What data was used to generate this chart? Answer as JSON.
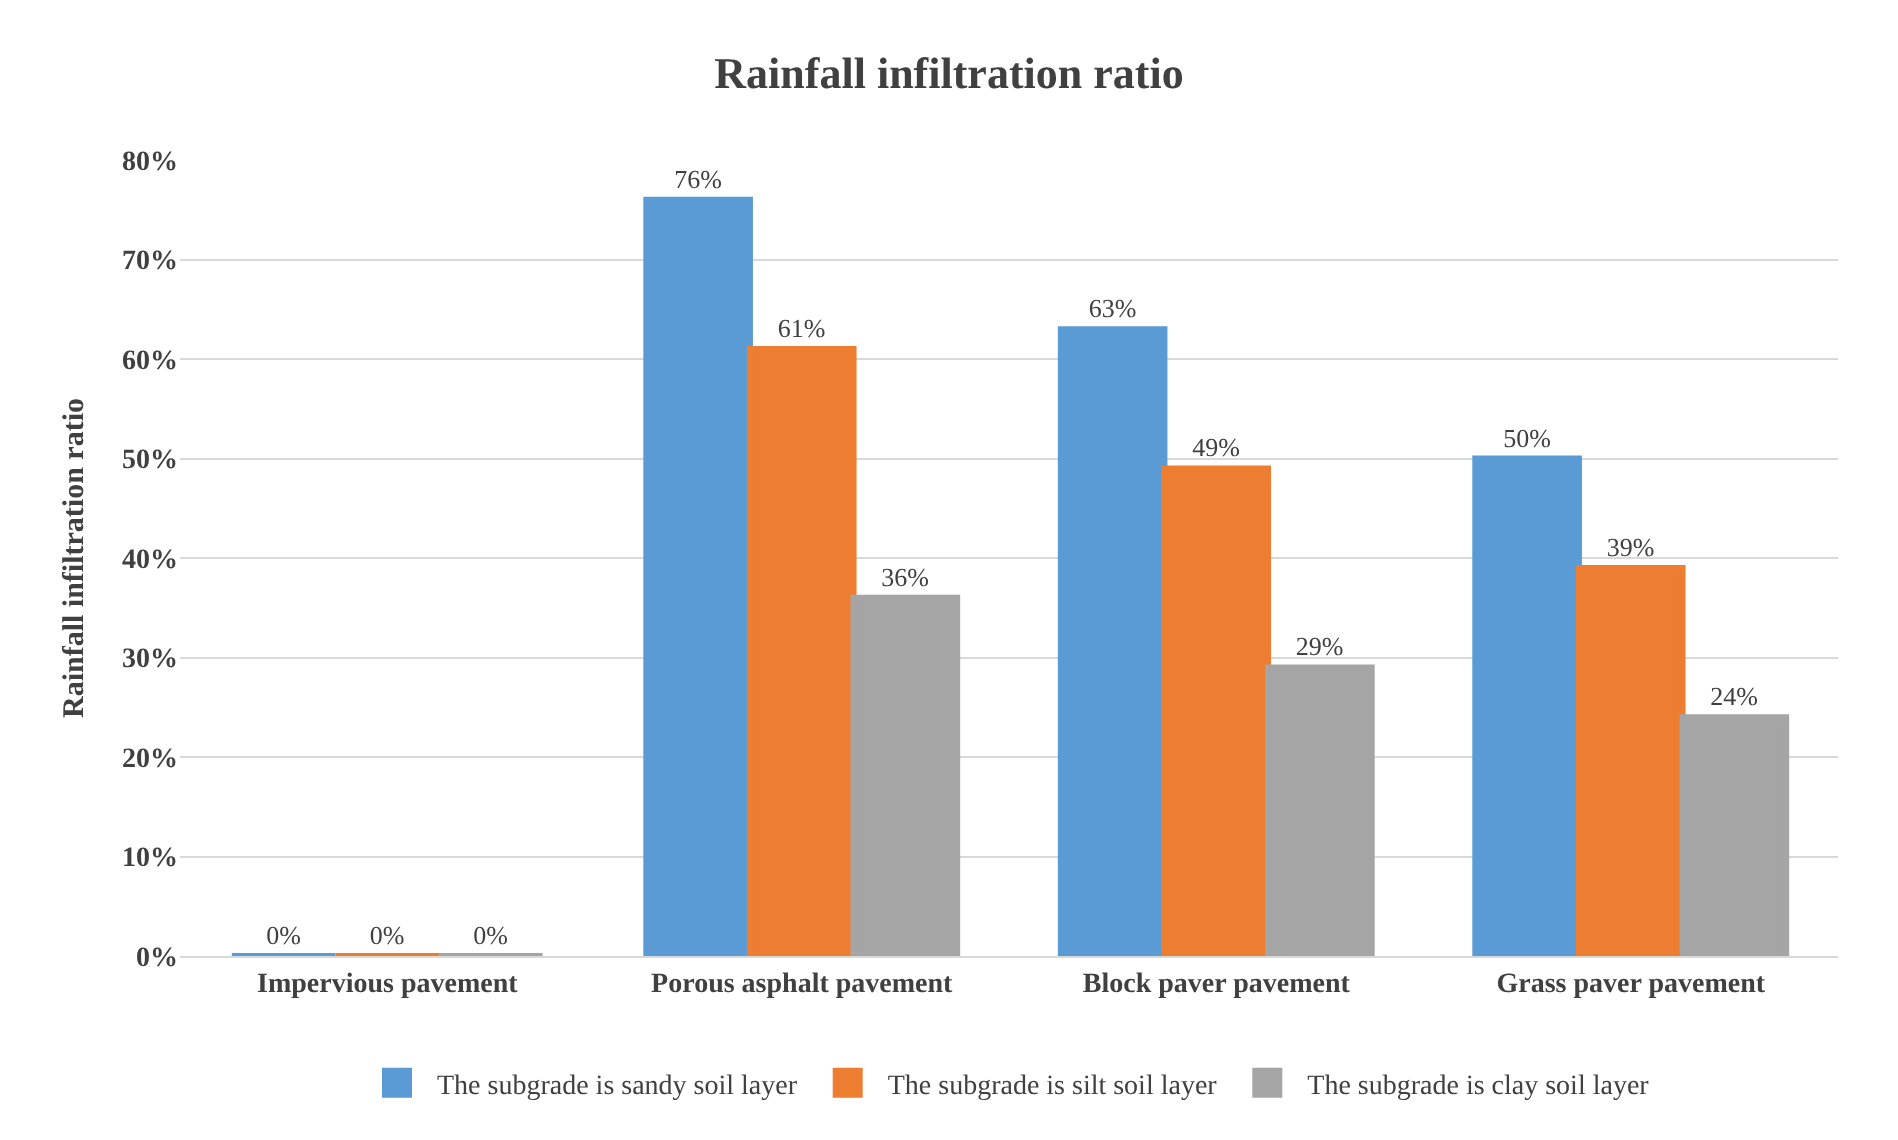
{
  "chart_data": {
    "type": "bar",
    "title": "Rainfall infiltration ratio",
    "ylabel": "Rainfall infiltration ratio",
    "categories": [
      "Impervious pavement",
      "Porous asphalt pavement",
      "Block paver pavement",
      "Grass paver pavement"
    ],
    "series": [
      {
        "name": "The subgrade is sandy soil layer",
        "color": "#5b9bd5",
        "values": [
          0,
          76,
          63,
          50
        ],
        "value_labels": [
          "0%",
          "76%",
          "63%",
          "50%"
        ]
      },
      {
        "name": "The subgrade is silt soil layer",
        "color": "#ed7d31",
        "values": [
          0,
          61,
          49,
          39
        ],
        "value_labels": [
          "0%",
          "61%",
          "49%",
          "39%"
        ]
      },
      {
        "name": "The subgrade is clay soil layer",
        "color": "#a5a5a5",
        "values": [
          0,
          36,
          29,
          24
        ],
        "value_labels": [
          "0%",
          "36%",
          "29%",
          "24%"
        ]
      }
    ],
    "ylim": [
      0,
      80
    ],
    "yticks": [
      {
        "value": 0,
        "label": "0%"
      },
      {
        "value": 10,
        "label": "10%"
      },
      {
        "value": 20,
        "label": "20%"
      },
      {
        "value": 30,
        "label": "30%"
      },
      {
        "value": 40,
        "label": "40%"
      },
      {
        "value": 50,
        "label": "50%"
      },
      {
        "value": 60,
        "label": "60%"
      },
      {
        "value": 70,
        "label": "70%"
      },
      {
        "value": 80,
        "label": "80%"
      }
    ],
    "grid": "y",
    "legend": "bottom"
  }
}
